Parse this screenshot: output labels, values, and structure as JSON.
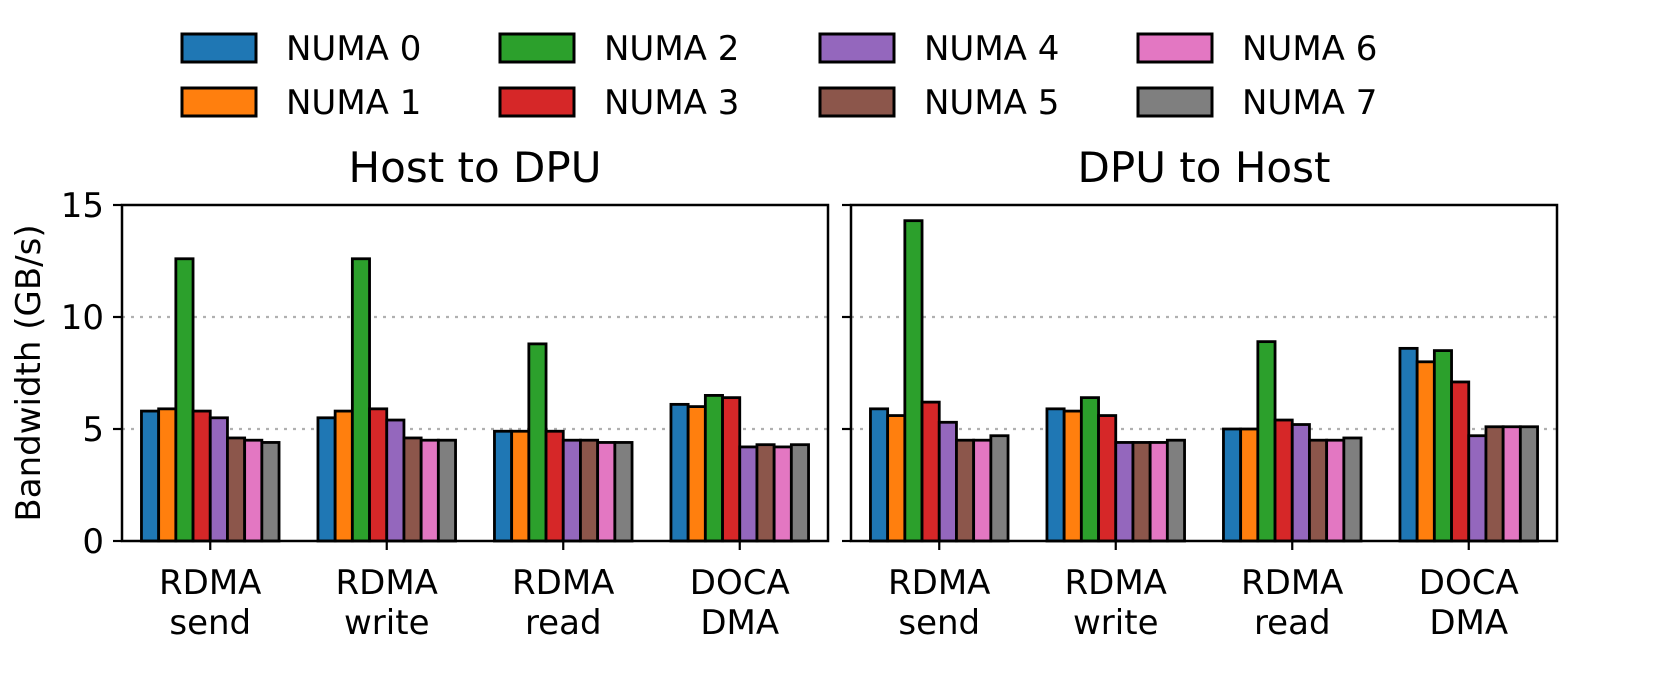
{
  "chart_data": {
    "type": "bar",
    "ylabel": "Bandwidth (GB/s)",
    "ylim": [
      0,
      15
    ],
    "yticks": [
      0,
      5,
      10,
      15
    ],
    "grid": "horizontal-dotted",
    "legend": {
      "placement": "top",
      "entries": [
        "NUMA 0",
        "NUMA 1",
        "NUMA 2",
        "NUMA 3",
        "NUMA 4",
        "NUMA 5",
        "NUMA 6",
        "NUMA 7"
      ]
    },
    "colors": [
      "#1f77b4",
      "#ff7f0e",
      "#2ca02c",
      "#d62728",
      "#9467bd",
      "#8c564b",
      "#e377c2",
      "#7f7f7f"
    ],
    "categories": [
      [
        "RDMA",
        "send"
      ],
      [
        "RDMA",
        "write"
      ],
      [
        "RDMA",
        "read"
      ],
      [
        "DOCA",
        "DMA"
      ]
    ],
    "panels": [
      {
        "title": "Host to DPU",
        "values": [
          [
            5.8,
            5.9,
            12.6,
            5.8,
            5.5,
            4.6,
            4.5,
            4.4
          ],
          [
            5.5,
            5.8,
            12.6,
            5.9,
            5.4,
            4.6,
            4.5,
            4.5
          ],
          [
            4.9,
            4.9,
            8.8,
            4.9,
            4.5,
            4.5,
            4.4,
            4.4
          ],
          [
            6.1,
            6.0,
            6.5,
            6.4,
            4.2,
            4.3,
            4.2,
            4.3
          ]
        ]
      },
      {
        "title": "DPU to Host",
        "values": [
          [
            5.9,
            5.6,
            14.3,
            6.2,
            5.3,
            4.5,
            4.5,
            4.7
          ],
          [
            5.9,
            5.8,
            6.4,
            5.6,
            4.4,
            4.4,
            4.4,
            4.5
          ],
          [
            5.0,
            5.0,
            8.9,
            5.4,
            5.2,
            4.5,
            4.5,
            4.6
          ],
          [
            8.6,
            8.0,
            8.5,
            7.1,
            4.7,
            5.1,
            5.1,
            5.1
          ]
        ]
      }
    ]
  }
}
